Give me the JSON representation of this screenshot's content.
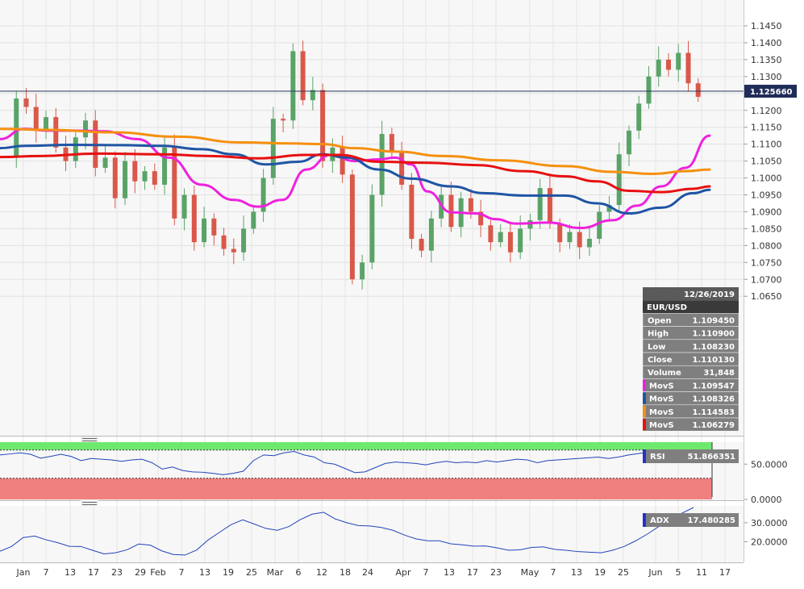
{
  "chart_data": [
    {
      "type": "candlestick",
      "panel": "price",
      "instrument": "EUR/USD",
      "y_ticks": [
        "1.1450",
        "1.1400",
        "1.1350",
        "1.1300",
        "1.1250",
        "1.1200",
        "1.1150",
        "1.1100",
        "1.1050",
        "1.1000",
        "1.0950",
        "1.0900",
        "1.0850",
        "1.0800",
        "1.0750",
        "1.0700",
        "1.0650"
      ],
      "ylim": [
        1.0628,
        1.1492
      ],
      "x_ticks": [
        "Jan",
        "7",
        "13",
        "17",
        "23",
        "29",
        "Feb",
        "7",
        "13",
        "19",
        "25",
        "Mar",
        "6",
        "12",
        "18",
        "24",
        "Apr",
        "7",
        "13",
        "17",
        "23",
        "May",
        "7",
        "13",
        "19",
        "25",
        "Jun",
        "5",
        "11",
        "17"
      ],
      "last_price": 1.12566,
      "last_price_label": "1.125660",
      "moving_averages": [
        {
          "name": "MovS",
          "color": "#ee22dd",
          "value": "1.109547"
        },
        {
          "name": "MovS",
          "color": "#1f55a5",
          "value": "1.108326"
        },
        {
          "name": "MovS",
          "color": "#f5900f",
          "value": "1.114583"
        },
        {
          "name": "MovS",
          "color": "#e81010",
          "value": "1.106279"
        }
      ],
      "info_box": {
        "date": "12/26/2019",
        "symbol": "EUR/USD",
        "rows": [
          {
            "label": "Open",
            "value": "1.109450"
          },
          {
            "label": "High",
            "value": "1.110900"
          },
          {
            "label": "Low",
            "value": "1.108230"
          },
          {
            "label": "Close",
            "value": "1.110130"
          },
          {
            "label": "Volume",
            "value": "31,848"
          }
        ]
      },
      "ohlc_path": [
        1.106,
        1.1235,
        1.121,
        1.114,
        1.118,
        1.109,
        1.105,
        1.112,
        1.117,
        1.103,
        1.106,
        1.094,
        1.105,
        1.099,
        1.102,
        1.098,
        1.109,
        1.088,
        1.095,
        1.081,
        1.088,
        1.083,
        1.079,
        1.078,
        1.085,
        1.09,
        1.1,
        1.1175,
        1.117,
        1.1375,
        1.123,
        1.126,
        1.105,
        1.109,
        1.101,
        1.07,
        1.075,
        1.095,
        1.113,
        1.108,
        1.098,
        1.082,
        1.0785,
        1.088,
        1.095,
        1.0855,
        1.094,
        1.09,
        1.086,
        1.081,
        1.084,
        1.078,
        1.085,
        1.0875,
        1.097,
        1.0865,
        1.081,
        1.084,
        1.0795,
        1.082,
        1.09,
        1.092,
        1.107,
        1.114,
        1.122,
        1.13,
        1.135,
        1.132,
        1.137,
        1.128,
        1.124
      ]
    },
    {
      "type": "line",
      "panel": "rsi",
      "name": "RSI",
      "value_label": "51.866351",
      "y_ticks": [
        "50.0000",
        "0.0000"
      ],
      "ylim": [
        0,
        80
      ],
      "zones": {
        "overbought": [
          70,
          80
        ],
        "oversold": [
          0,
          30
        ]
      },
      "values": [
        63,
        64.5,
        66,
        64,
        58.5,
        61,
        64,
        61,
        55,
        58,
        57,
        56,
        54,
        56,
        57,
        52,
        43,
        46,
        41,
        39,
        38.5,
        37,
        35,
        37,
        40,
        55,
        63,
        62,
        66,
        68,
        63,
        60,
        52,
        50,
        44,
        38,
        39,
        45,
        51,
        53,
        52,
        51,
        49,
        52,
        54,
        52,
        53,
        52,
        55,
        53,
        55,
        57,
        56,
        52,
        55,
        56,
        57,
        58,
        59,
        60,
        58,
        60,
        63,
        65,
        67,
        69,
        69,
        70,
        66,
        66,
        66
      ]
    },
    {
      "type": "line",
      "panel": "adx",
      "name": "ADX",
      "value_label": "17.480285",
      "y_ticks": [
        "30.0000",
        "20.0000"
      ],
      "ylim": [
        10,
        38
      ],
      "values": [
        15,
        17.5,
        22.2,
        23,
        21,
        19.5,
        17.6,
        17.5,
        15.5,
        13.6,
        14.2,
        15.8,
        18.8,
        18.2,
        15.2,
        13.3,
        13,
        15.6,
        20.9,
        25,
        29,
        31.5,
        29.3,
        27,
        26,
        28,
        31.7,
        34.5,
        35.5,
        32,
        30,
        28.5,
        28.3,
        27.5,
        26,
        23.5,
        21.5,
        20.5,
        20.5,
        18.9,
        18.4,
        17.7,
        17.8,
        16.8,
        15.5,
        15.8,
        17,
        17.3,
        16,
        15.5,
        14.8,
        14.5,
        14.2,
        15.5,
        17.5,
        20.5,
        24,
        28,
        31,
        35,
        38
      ]
    }
  ]
}
